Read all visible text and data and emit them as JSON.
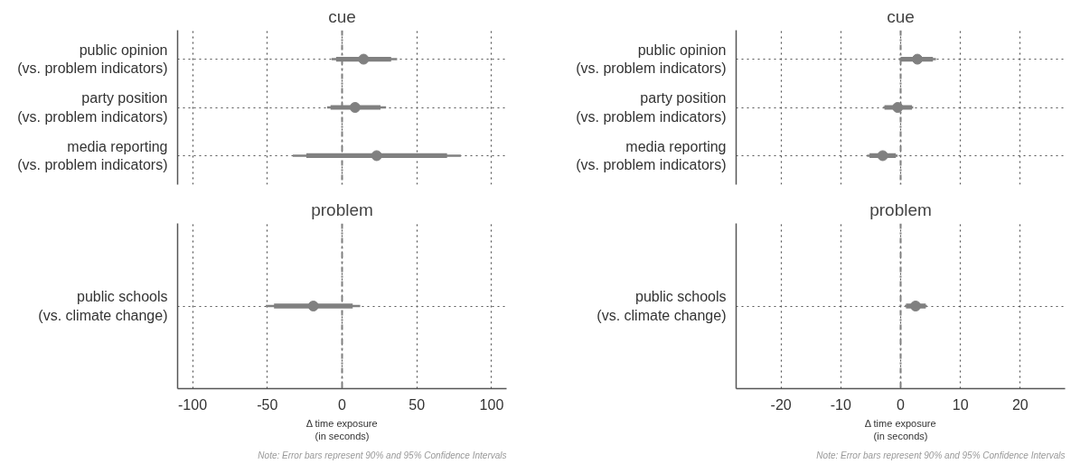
{
  "chart_data": [
    {
      "type": "scatter",
      "orientation": "horizontal",
      "title": "cue",
      "categories": [
        "public opinion\n(vs. problem indicators)",
        "party position\n(vs. problem indicators)",
        "media reporting\n(vs. problem indicators)"
      ],
      "series": [
        {
          "color": "#808080",
          "marker": "circle",
          "values": [
            14.4,
            8.7,
            23.1
          ],
          "errors": [
            [
              -7,
              36.8
            ],
            [
              -10,
              29.4
            ],
            [
              -33,
              79.4
            ]
          ]
        },
        {
          "type": "bar",
          "color": "#808080",
          "base": [
            -4,
            -7.7,
            -23.9
          ],
          "values": [
            36.8,
            33.4,
            94.1
          ]
        }
      ],
      "xlim": [
        -110,
        110
      ],
      "xticks": [
        -100,
        -50,
        0,
        50,
        100
      ],
      "tick_labels": "y",
      "grid": true,
      "ref_lines": [
        {
          "axis": "x",
          "value": 0,
          "color": "#808080",
          "line_style": "dashdot"
        }
      ]
    },
    {
      "type": "scatter",
      "orientation": "horizontal",
      "title": "cue",
      "categories": [
        "public opinion\n(vs. problem indicators)",
        "party position\n(vs. problem indicators)",
        "media reporting\n(vs. problem indicators)"
      ],
      "series": [
        {
          "color": "#808080",
          "marker": "circle",
          "values": [
            2.8,
            -0.5,
            -3.0
          ],
          "errors": [
            [
              -0.3,
              5.9
            ],
            [
              -2.9,
              2.1
            ],
            [
              -5.6,
              -0.5
            ]
          ]
        },
        {
          "type": "bar",
          "color": "#808080",
          "base": [
            0,
            -2.7,
            -5.2
          ],
          "values": [
            5.4,
            4.6,
            4.4
          ]
        }
      ],
      "xlim": [
        -27.5,
        27.5
      ],
      "xticks": [
        -20,
        -10,
        0,
        10,
        20
      ],
      "tick_labels": "y",
      "grid": true,
      "ref_lines": [
        {
          "axis": "x",
          "value": 0,
          "color": "#808080",
          "line_style": "dashdot"
        }
      ]
    },
    {
      "type": "scatter",
      "orientation": "horizontal",
      "title": "problem",
      "xlabel": "Δ time exposure\n(in seconds)",
      "categories": [
        "public schools\n(vs. climate change)"
      ],
      "series": [
        {
          "color": "#808080",
          "marker": "circle",
          "values": [
            -19.2
          ],
          "errors": [
            [
              -51,
              12.1
            ]
          ]
        },
        {
          "type": "bar",
          "color": "#808080",
          "base": [
            -45.5
          ],
          "values": [
            52.6
          ]
        }
      ],
      "xlim": [
        -110,
        110
      ],
      "xticks": [
        -100,
        -50,
        0,
        50,
        100
      ],
      "grid": true,
      "ref_lines": [
        {
          "axis": "x",
          "value": 0,
          "color": "#808080",
          "line_style": "dashdot"
        }
      ],
      "annotations": [
        "Note: Error bars represent 90% and 95% Confidence Intervals"
      ]
    },
    {
      "type": "scatter",
      "orientation": "horizontal",
      "title": "problem",
      "xlabel": "Δ time exposure\n(in seconds)",
      "categories": [
        "public schools\n(vs. climate change)"
      ],
      "series": [
        {
          "color": "#808080",
          "marker": "circle",
          "values": [
            2.5
          ],
          "errors": [
            [
              0.7,
              4.4
            ]
          ]
        },
        {
          "type": "bar",
          "color": "#808080",
          "base": [
            0.9
          ],
          "values": [
            3.3
          ]
        }
      ],
      "xlim": [
        -27.5,
        27.5
      ],
      "xticks": [
        -20,
        -10,
        0,
        10,
        20
      ],
      "grid": true,
      "ref_lines": [
        {
          "axis": "x",
          "value": 0,
          "color": "#808080",
          "line_style": "dashdot"
        }
      ],
      "annotations": [
        "Note: Error bars represent 90% and 95% Confidence Intervals"
      ]
    }
  ]
}
